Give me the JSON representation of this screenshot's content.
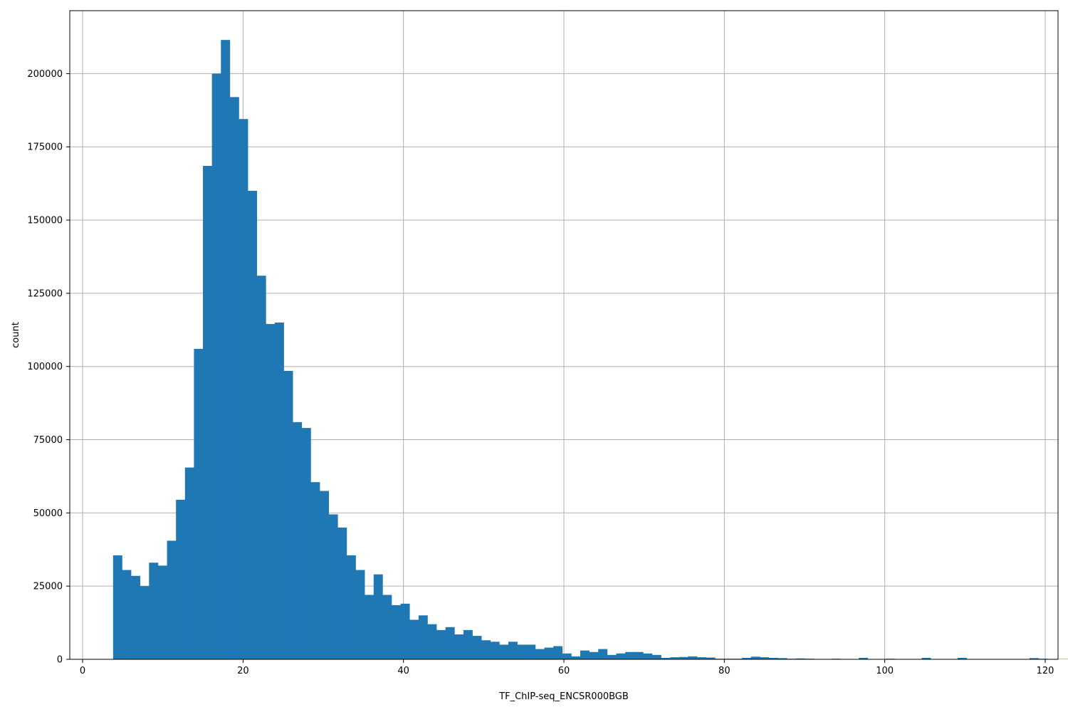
{
  "chart_data": {
    "type": "bar",
    "subtype": "histogram",
    "xlabel": "TF_ChIP-seq_ENCSR000BGB",
    "ylabel": "count",
    "xlim": [
      -1.6,
      121.6
    ],
    "ylim": [
      0,
      221500
    ],
    "grid": true,
    "bar_color": "#1f77b4",
    "grid_color": "#b0b0b0",
    "xticks": [
      0,
      20,
      40,
      60,
      80,
      100,
      120
    ],
    "xtick_labels": [
      "0",
      "20",
      "40",
      "60",
      "80",
      "100",
      "120"
    ],
    "yticks": [
      0,
      25000,
      50000,
      75000,
      100000,
      125000,
      150000,
      175000,
      200000
    ],
    "ytick_labels": [
      "0",
      "25000",
      "50000",
      "75000",
      "100000",
      "125000",
      "150000",
      "175000",
      "200000"
    ],
    "bin_start": 3.8,
    "bin_width": 1.12,
    "values": [
      35500,
      30500,
      28500,
      25000,
      33000,
      32000,
      40500,
      54500,
      65500,
      106000,
      168500,
      200000,
      211500,
      192000,
      184500,
      160000,
      131000,
      114500,
      115000,
      98500,
      81000,
      79000,
      60500,
      57500,
      49500,
      45000,
      35500,
      30500,
      22000,
      29000,
      22000,
      18500,
      19000,
      13500,
      15000,
      12000,
      10000,
      11000,
      8500,
      10000,
      8000,
      6500,
      6000,
      5000,
      6000,
      5000,
      5000,
      3500,
      4000,
      4500,
      2000,
      1000,
      3000,
      2500,
      3500,
      1500,
      2000,
      2500,
      2500,
      2000,
      1500,
      500,
      700,
      800,
      1000,
      700,
      600,
      200,
      200,
      200,
      500,
      900,
      700,
      500,
      400,
      200,
      300,
      200,
      100,
      100,
      200,
      100,
      100,
      500,
      100,
      100,
      200,
      100,
      100,
      100,
      500,
      100,
      100,
      100,
      500,
      100,
      100,
      100,
      100,
      100,
      100,
      100,
      400,
      200,
      100,
      100,
      100,
      100
    ]
  }
}
